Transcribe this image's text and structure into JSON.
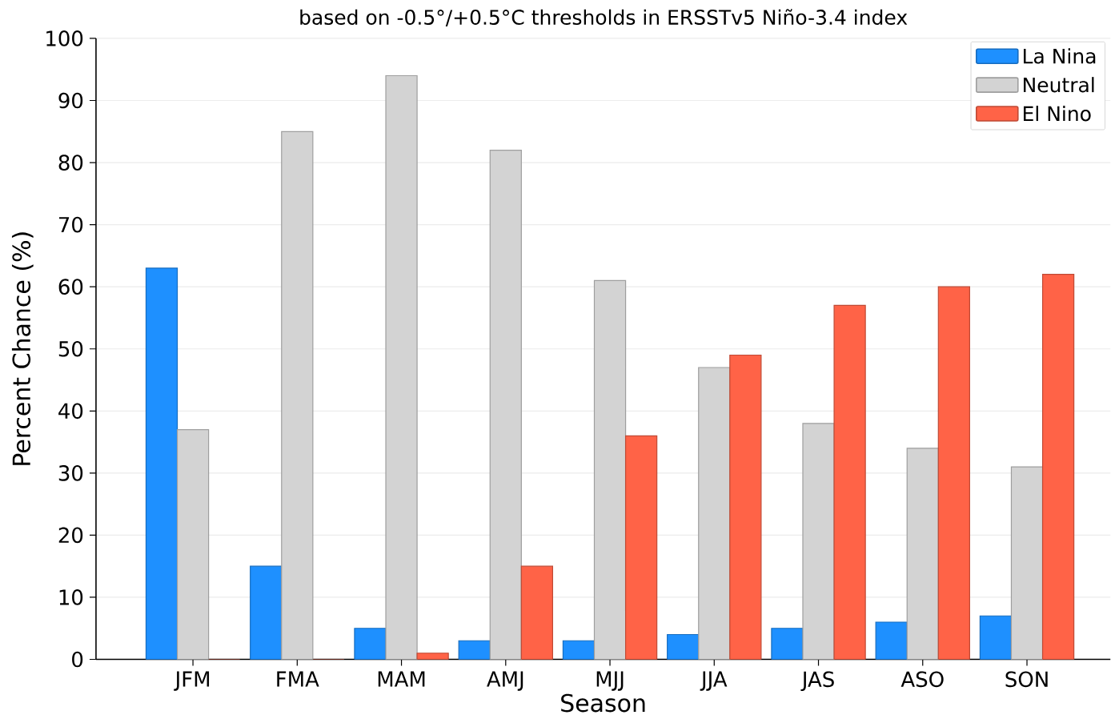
{
  "chart_data": {
    "type": "bar",
    "title": "based on -0.5°/+0.5°C thresholds in ERSSTv5 Niño-3.4 index",
    "xlabel": "Season",
    "ylabel": "Percent Chance (%)",
    "categories": [
      "JFM",
      "FMA",
      "MAM",
      "AMJ",
      "MJJ",
      "JJA",
      "JAS",
      "ASO",
      "SON"
    ],
    "series": [
      {
        "name": "La Nina",
        "color": "#1e90ff",
        "values": [
          63,
          15,
          5,
          3,
          3,
          4,
          5,
          6,
          7
        ]
      },
      {
        "name": "Neutral",
        "color": "#d3d3d3",
        "values": [
          37,
          85,
          94,
          82,
          61,
          47,
          38,
          34,
          31
        ]
      },
      {
        "name": "El Nino",
        "color": "#ff6347",
        "values": [
          0,
          0,
          1,
          15,
          36,
          49,
          57,
          60,
          62
        ]
      }
    ],
    "ylim": [
      0,
      100
    ],
    "yticks": [
      0,
      10,
      20,
      30,
      40,
      50,
      60,
      70,
      80,
      90,
      100
    ],
    "grid": "y",
    "legend": "top right"
  }
}
